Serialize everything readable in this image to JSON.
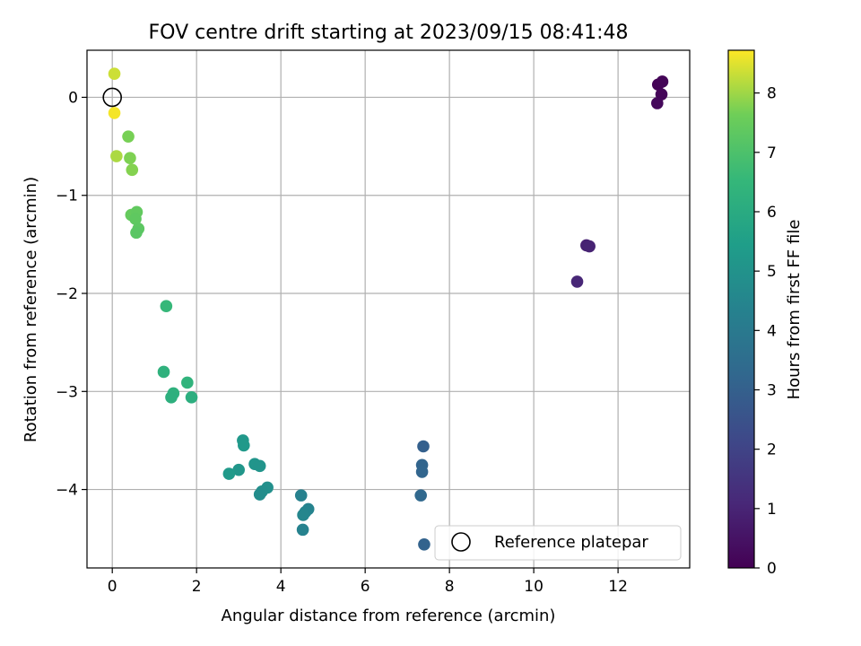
{
  "chart_data": {
    "type": "scatter",
    "title": "FOV centre drift starting at 2023/09/15 08:41:48",
    "xlabel": "Angular distance from reference (arcmin)",
    "ylabel": "Rotation from reference (arcmin)",
    "xlim": [
      -0.6,
      13.7
    ],
    "ylim": [
      -4.8,
      0.48
    ],
    "xticks": [
      0,
      2,
      4,
      6,
      8,
      10,
      12
    ],
    "yticks": [
      0,
      -1,
      -2,
      -3,
      -4
    ],
    "grid": true,
    "colormap": "viridis",
    "colorbar": {
      "label": "Hours from first FF file",
      "min": 0,
      "max": 8.72,
      "ticks": [
        0,
        1,
        2,
        3,
        4,
        5,
        6,
        7,
        8
      ]
    },
    "legend": {
      "position": "lower right",
      "entries": [
        "Reference platepar"
      ]
    },
    "reference_point": {
      "x": 0,
      "y": 0,
      "label": "Reference platepar"
    },
    "points": [
      {
        "x": 12.95,
        "y": 0.13,
        "hours": 0.05
      },
      {
        "x": 13.05,
        "y": 0.16,
        "hours": 0.1
      },
      {
        "x": 13.03,
        "y": 0.03,
        "hours": 0.15
      },
      {
        "x": 12.93,
        "y": -0.06,
        "hours": 0.2
      },
      {
        "x": 11.25,
        "y": -1.51,
        "hours": 0.9
      },
      {
        "x": 11.32,
        "y": -1.52,
        "hours": 0.95
      },
      {
        "x": 11.03,
        "y": -1.88,
        "hours": 1.05
      },
      {
        "x": 7.38,
        "y": -3.56,
        "hours": 3.0
      },
      {
        "x": 7.35,
        "y": -3.75,
        "hours": 3.15
      },
      {
        "x": 7.35,
        "y": -3.82,
        "hours": 3.2
      },
      {
        "x": 7.32,
        "y": -4.06,
        "hours": 3.3
      },
      {
        "x": 7.4,
        "y": -4.56,
        "hours": 3.1
      },
      {
        "x": 4.48,
        "y": -4.06,
        "hours": 4.3
      },
      {
        "x": 4.65,
        "y": -4.2,
        "hours": 4.4
      },
      {
        "x": 4.58,
        "y": -4.23,
        "hours": 4.45
      },
      {
        "x": 4.53,
        "y": -4.26,
        "hours": 4.5
      },
      {
        "x": 4.52,
        "y": -4.41,
        "hours": 4.35
      },
      {
        "x": 3.1,
        "y": -3.5,
        "hours": 5.2
      },
      {
        "x": 3.12,
        "y": -3.55,
        "hours": 5.25
      },
      {
        "x": 3.38,
        "y": -3.74,
        "hours": 5.1
      },
      {
        "x": 3.5,
        "y": -3.76,
        "hours": 5.05
      },
      {
        "x": 3.0,
        "y": -3.8,
        "hours": 5.15
      },
      {
        "x": 2.77,
        "y": -3.84,
        "hours": 5.3
      },
      {
        "x": 3.68,
        "y": -3.98,
        "hours": 4.9
      },
      {
        "x": 3.55,
        "y": -4.02,
        "hours": 4.85
      },
      {
        "x": 3.5,
        "y": -4.05,
        "hours": 4.8
      },
      {
        "x": 1.28,
        "y": -2.13,
        "hours": 6.55
      },
      {
        "x": 1.22,
        "y": -2.8,
        "hours": 6.3
      },
      {
        "x": 1.78,
        "y": -2.91,
        "hours": 6.35
      },
      {
        "x": 1.45,
        "y": -3.02,
        "hours": 6.25
      },
      {
        "x": 1.4,
        "y": -3.06,
        "hours": 6.2
      },
      {
        "x": 1.88,
        "y": -3.06,
        "hours": 6.15
      },
      {
        "x": 0.45,
        "y": -1.2,
        "hours": 7.45
      },
      {
        "x": 0.58,
        "y": -1.17,
        "hours": 7.4
      },
      {
        "x": 0.55,
        "y": -1.24,
        "hours": 7.35
      },
      {
        "x": 0.62,
        "y": -1.34,
        "hours": 7.3
      },
      {
        "x": 0.57,
        "y": -1.38,
        "hours": 7.25
      },
      {
        "x": 0.38,
        "y": -0.4,
        "hours": 7.7
      },
      {
        "x": 0.42,
        "y": -0.62,
        "hours": 7.75
      },
      {
        "x": 0.47,
        "y": -0.74,
        "hours": 7.8
      },
      {
        "x": 0.1,
        "y": -0.6,
        "hours": 8.1
      },
      {
        "x": 0.05,
        "y": 0.24,
        "hours": 8.35
      },
      {
        "x": 0.05,
        "y": -0.16,
        "hours": 8.65
      }
    ]
  }
}
